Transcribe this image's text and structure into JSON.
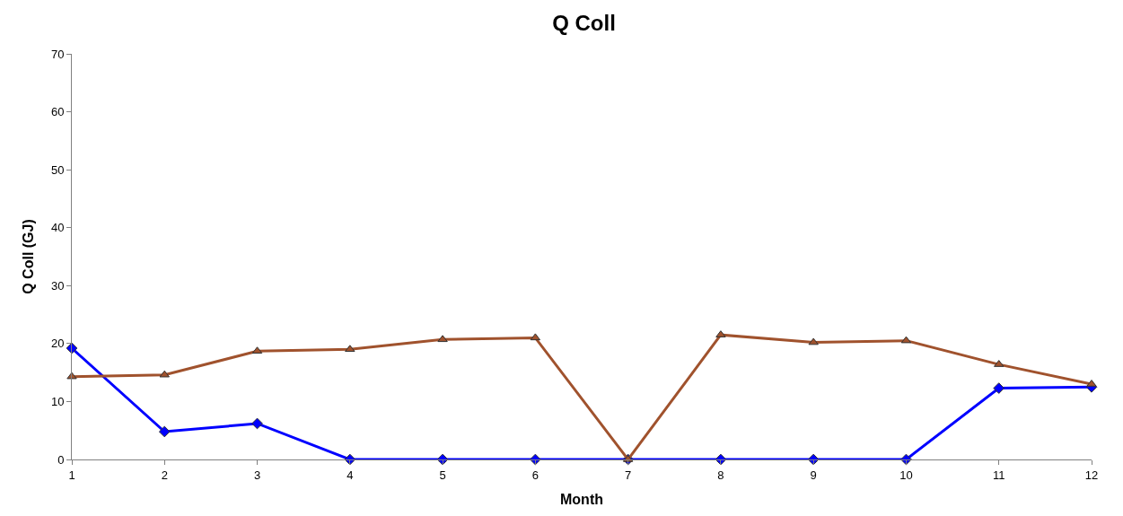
{
  "chart_data": {
    "type": "line",
    "title": "Q Coll",
    "xlabel": "Month",
    "ylabel": "Q Coll (GJ)",
    "x": [
      1,
      2,
      3,
      4,
      5,
      6,
      7,
      8,
      9,
      10,
      11,
      12
    ],
    "series": [
      {
        "color": "#0000ff",
        "marker": "diamond",
        "values": [
          19.2,
          4.8,
          6.2,
          0,
          0,
          0,
          0,
          0,
          0,
          0,
          12.3,
          12.5
        ]
      },
      {
        "color": "#a0522d",
        "marker": "triangle",
        "values": [
          14.3,
          14.6,
          18.7,
          19.0,
          20.7,
          21.0,
          0,
          21.5,
          20.2,
          20.5,
          16.4,
          13.0
        ]
      }
    ],
    "xlim": [
      1,
      12
    ],
    "xticks": [
      1,
      2,
      3,
      4,
      5,
      6,
      7,
      8,
      9,
      10,
      11,
      12
    ],
    "ylim": [
      0,
      70
    ],
    "yticks": [
      0,
      10,
      20,
      30,
      40,
      50,
      60,
      70
    ],
    "grid": false,
    "line_style": "solid"
  }
}
